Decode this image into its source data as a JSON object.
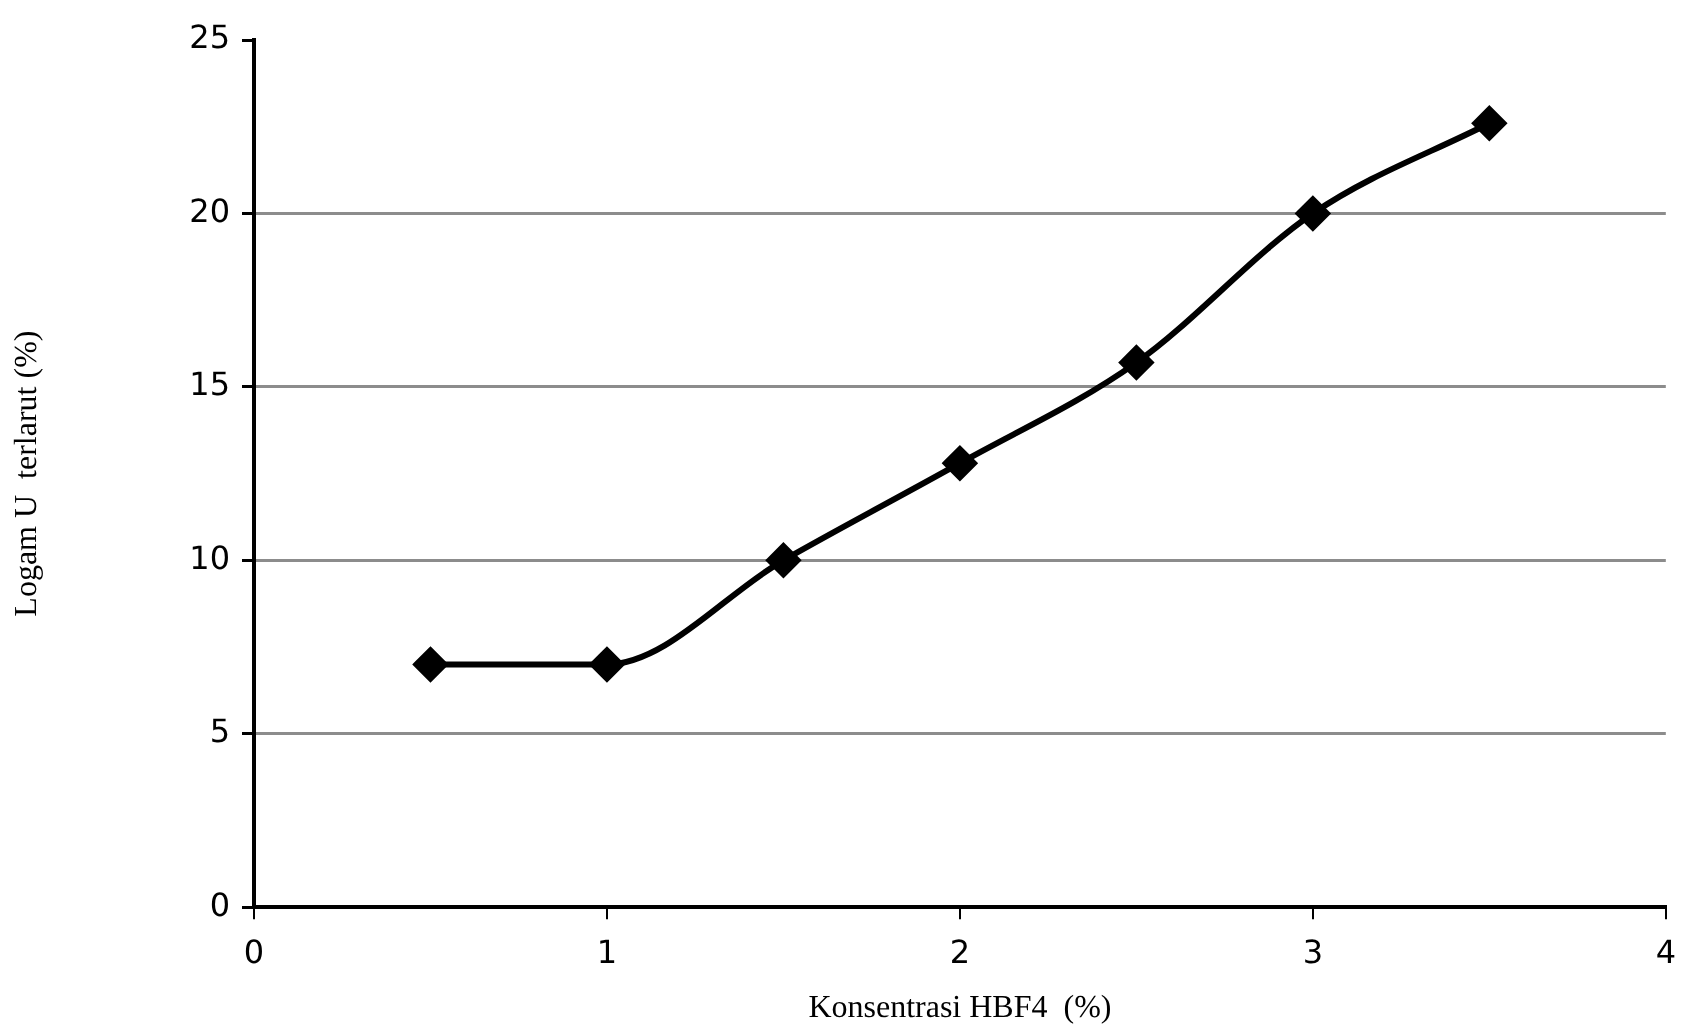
{
  "chart_data": {
    "type": "line",
    "xlabel": "Konsentrasi HBF4  (%)",
    "ylabel": "Logam U  terlarut (%)",
    "x": [
      0.5,
      1,
      1.5,
      2,
      2.5,
      3,
      3.5
    ],
    "series": [
      {
        "color": "#000000",
        "values": [
          7.0,
          7.0,
          10.0,
          12.8,
          15.7,
          20.0,
          22.6
        ]
      }
    ],
    "xlim": [
      0,
      4
    ],
    "xticks": [
      0,
      1,
      2,
      3,
      4
    ],
    "ylim": [
      0,
      25
    ],
    "yticks": [
      0,
      5,
      10,
      15,
      20,
      25
    ],
    "grid": "y",
    "marker": "diamond",
    "line_style": "solid",
    "legend": false
  }
}
